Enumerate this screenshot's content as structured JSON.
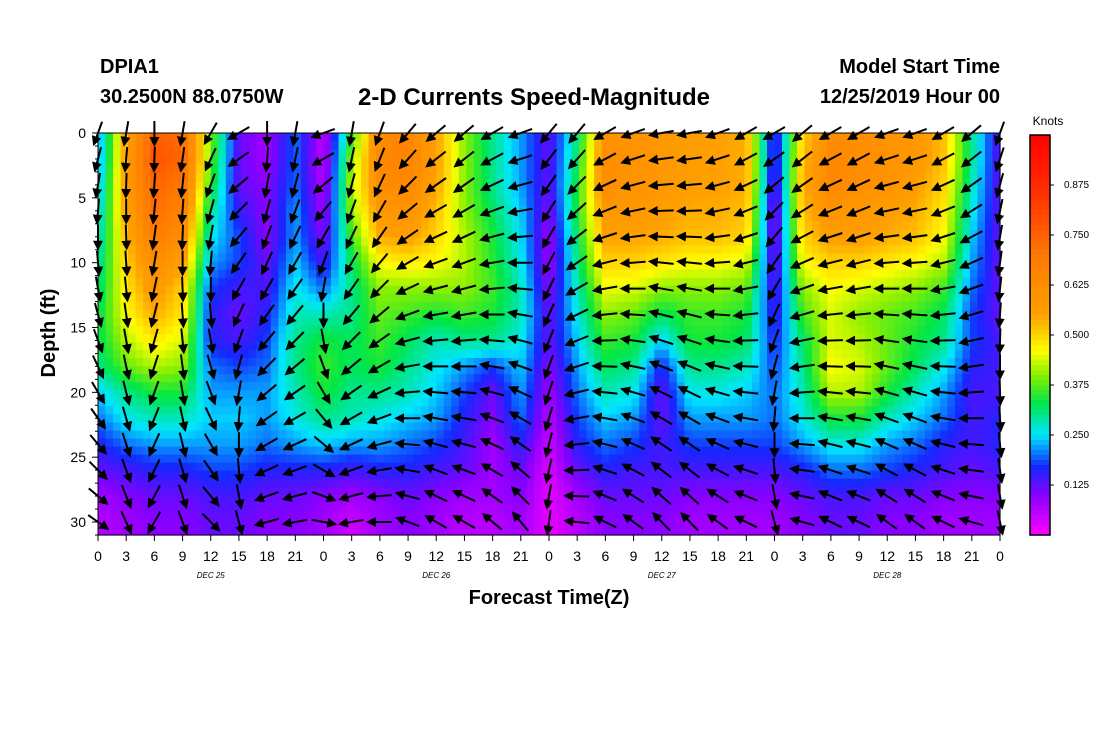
{
  "header": {
    "station_id": "DPIA1",
    "station_location": "30.2500N 88.0750W",
    "model_label": "Model Start Time",
    "model_time": "12/25/2019 Hour 00"
  },
  "chart_data": {
    "type": "heatmap",
    "title": "2-D Currents Speed-Magnitude",
    "xlabel": "Forecast Time(Z)",
    "ylabel": "Depth (ft)",
    "x_range_hours": [
      0,
      96
    ],
    "y_range_ft": [
      0,
      31
    ],
    "y_inverted": true,
    "x_tick_step_hours": 3,
    "x_tick_labels": [
      "0",
      "3",
      "6",
      "9",
      "12",
      "15",
      "18",
      "21",
      "0",
      "3",
      "6",
      "9",
      "12",
      "15",
      "18",
      "21",
      "0",
      "3",
      "6",
      "9",
      "12",
      "15",
      "18",
      "21",
      "0",
      "3",
      "6",
      "9",
      "12",
      "15",
      "18",
      "21",
      "0"
    ],
    "y_ticks": [
      0,
      5,
      10,
      15,
      20,
      25,
      30
    ],
    "y_tick_labels": [
      "0",
      "5",
      "10",
      "15",
      "20",
      "25",
      "30"
    ],
    "day_labels": [
      "DEC 25",
      "DEC 26",
      "DEC 27",
      "DEC 28"
    ],
    "colorbar": {
      "title": "Knots",
      "range": [
        0,
        1.0
      ],
      "ticks": [
        0.125,
        0.25,
        0.375,
        0.5,
        0.625,
        0.75,
        0.875
      ],
      "tick_labels": [
        "0.125",
        "0.250",
        "0.375",
        "0.500",
        "0.625",
        "0.750",
        "0.875"
      ]
    },
    "depths_ft": [
      0,
      2,
      4,
      6,
      8,
      10,
      12,
      14,
      16,
      18,
      20,
      22,
      24,
      26,
      28,
      30
    ],
    "hours": [
      0,
      3,
      6,
      9,
      12,
      15,
      18,
      21,
      24,
      27,
      30,
      33,
      36,
      39,
      42,
      45,
      48,
      51,
      54,
      57,
      60,
      63,
      66,
      69,
      72,
      75,
      78,
      81,
      84,
      87,
      90,
      93,
      96
    ],
    "speed_knots": [
      [
        0.2,
        0.55,
        0.75,
        0.72,
        0.4,
        0.12,
        0.08,
        0.2,
        0.05,
        0.35,
        0.62,
        0.65,
        0.55,
        0.4,
        0.3,
        0.22,
        0.12,
        0.3,
        0.6,
        0.6,
        0.58,
        0.56,
        0.55,
        0.54,
        0.12,
        0.5,
        0.62,
        0.62,
        0.6,
        0.58,
        0.52,
        0.3,
        0.12
      ],
      [
        0.2,
        0.56,
        0.78,
        0.74,
        0.38,
        0.12,
        0.08,
        0.2,
        0.05,
        0.4,
        0.64,
        0.66,
        0.56,
        0.4,
        0.3,
        0.22,
        0.12,
        0.32,
        0.62,
        0.6,
        0.58,
        0.56,
        0.55,
        0.54,
        0.12,
        0.52,
        0.64,
        0.62,
        0.6,
        0.58,
        0.52,
        0.3,
        0.12
      ],
      [
        0.22,
        0.56,
        0.74,
        0.7,
        0.35,
        0.12,
        0.1,
        0.2,
        0.06,
        0.42,
        0.62,
        0.64,
        0.55,
        0.4,
        0.3,
        0.22,
        0.12,
        0.34,
        0.62,
        0.6,
        0.58,
        0.56,
        0.55,
        0.54,
        0.1,
        0.54,
        0.64,
        0.62,
        0.6,
        0.56,
        0.5,
        0.28,
        0.12
      ],
      [
        0.24,
        0.55,
        0.72,
        0.66,
        0.3,
        0.15,
        0.1,
        0.22,
        0.08,
        0.4,
        0.58,
        0.6,
        0.52,
        0.4,
        0.32,
        0.24,
        0.1,
        0.34,
        0.58,
        0.58,
        0.56,
        0.54,
        0.54,
        0.52,
        0.08,
        0.52,
        0.6,
        0.58,
        0.56,
        0.54,
        0.48,
        0.26,
        0.12
      ],
      [
        0.26,
        0.52,
        0.68,
        0.62,
        0.26,
        0.18,
        0.1,
        0.22,
        0.1,
        0.36,
        0.54,
        0.56,
        0.5,
        0.42,
        0.34,
        0.25,
        0.08,
        0.32,
        0.55,
        0.55,
        0.54,
        0.52,
        0.52,
        0.5,
        0.08,
        0.5,
        0.56,
        0.56,
        0.54,
        0.52,
        0.46,
        0.24,
        0.12
      ],
      [
        0.28,
        0.5,
        0.62,
        0.56,
        0.22,
        0.18,
        0.12,
        0.24,
        0.14,
        0.32,
        0.46,
        0.48,
        0.46,
        0.42,
        0.35,
        0.26,
        0.08,
        0.3,
        0.5,
        0.5,
        0.48,
        0.46,
        0.46,
        0.44,
        0.1,
        0.46,
        0.5,
        0.5,
        0.48,
        0.46,
        0.42,
        0.22,
        0.12
      ],
      [
        0.3,
        0.48,
        0.58,
        0.5,
        0.18,
        0.14,
        0.14,
        0.26,
        0.2,
        0.3,
        0.4,
        0.4,
        0.4,
        0.4,
        0.36,
        0.28,
        0.1,
        0.28,
        0.45,
        0.44,
        0.4,
        0.4,
        0.4,
        0.38,
        0.12,
        0.4,
        0.46,
        0.44,
        0.42,
        0.4,
        0.36,
        0.2,
        0.12
      ],
      [
        0.32,
        0.46,
        0.54,
        0.48,
        0.16,
        0.12,
        0.16,
        0.28,
        0.28,
        0.3,
        0.38,
        0.36,
        0.34,
        0.36,
        0.34,
        0.28,
        0.12,
        0.26,
        0.4,
        0.38,
        0.32,
        0.36,
        0.36,
        0.34,
        0.14,
        0.36,
        0.44,
        0.4,
        0.38,
        0.36,
        0.32,
        0.18,
        0.12
      ],
      [
        0.32,
        0.42,
        0.48,
        0.44,
        0.16,
        0.14,
        0.18,
        0.3,
        0.34,
        0.32,
        0.36,
        0.32,
        0.28,
        0.3,
        0.3,
        0.26,
        0.12,
        0.24,
        0.36,
        0.34,
        0.24,
        0.34,
        0.34,
        0.32,
        0.16,
        0.32,
        0.44,
        0.42,
        0.38,
        0.34,
        0.3,
        0.18,
        0.14
      ],
      [
        0.3,
        0.38,
        0.42,
        0.4,
        0.2,
        0.18,
        0.2,
        0.3,
        0.36,
        0.32,
        0.34,
        0.3,
        0.26,
        0.22,
        0.18,
        0.24,
        0.1,
        0.22,
        0.32,
        0.3,
        0.16,
        0.3,
        0.3,
        0.28,
        0.18,
        0.3,
        0.46,
        0.44,
        0.38,
        0.32,
        0.26,
        0.16,
        0.14
      ],
      [
        0.24,
        0.3,
        0.34,
        0.34,
        0.22,
        0.22,
        0.22,
        0.28,
        0.34,
        0.3,
        0.3,
        0.28,
        0.24,
        0.18,
        0.12,
        0.22,
        0.08,
        0.2,
        0.28,
        0.26,
        0.12,
        0.26,
        0.26,
        0.24,
        0.2,
        0.28,
        0.42,
        0.42,
        0.34,
        0.28,
        0.22,
        0.14,
        0.14
      ],
      [
        0.2,
        0.26,
        0.28,
        0.28,
        0.24,
        0.24,
        0.22,
        0.26,
        0.3,
        0.28,
        0.26,
        0.24,
        0.22,
        0.16,
        0.1,
        0.2,
        0.06,
        0.18,
        0.24,
        0.22,
        0.12,
        0.22,
        0.22,
        0.22,
        0.2,
        0.26,
        0.34,
        0.34,
        0.28,
        0.24,
        0.2,
        0.14,
        0.16
      ],
      [
        0.16,
        0.2,
        0.22,
        0.22,
        0.22,
        0.22,
        0.2,
        0.22,
        0.24,
        0.22,
        0.22,
        0.2,
        0.18,
        0.14,
        0.08,
        0.16,
        0.04,
        0.16,
        0.2,
        0.18,
        0.14,
        0.18,
        0.18,
        0.18,
        0.18,
        0.22,
        0.26,
        0.26,
        0.22,
        0.2,
        0.16,
        0.14,
        0.16
      ],
      [
        0.12,
        0.14,
        0.16,
        0.16,
        0.18,
        0.18,
        0.16,
        0.16,
        0.16,
        0.14,
        0.16,
        0.16,
        0.14,
        0.12,
        0.08,
        0.12,
        0.03,
        0.12,
        0.16,
        0.14,
        0.14,
        0.14,
        0.14,
        0.14,
        0.14,
        0.16,
        0.2,
        0.2,
        0.18,
        0.16,
        0.14,
        0.12,
        0.14
      ],
      [
        0.08,
        0.1,
        0.12,
        0.12,
        0.14,
        0.14,
        0.12,
        0.12,
        0.1,
        0.08,
        0.1,
        0.12,
        0.1,
        0.08,
        0.08,
        0.1,
        0.02,
        0.08,
        0.12,
        0.12,
        0.12,
        0.1,
        0.1,
        0.1,
        0.1,
        0.12,
        0.14,
        0.14,
        0.12,
        0.12,
        0.1,
        0.1,
        0.1
      ],
      [
        0.06,
        0.08,
        0.1,
        0.1,
        0.12,
        0.12,
        0.1,
        0.1,
        0.08,
        0.04,
        0.08,
        0.1,
        0.08,
        0.06,
        0.06,
        0.08,
        0.02,
        0.06,
        0.1,
        0.1,
        0.1,
        0.08,
        0.08,
        0.08,
        0.08,
        0.1,
        0.12,
        0.12,
        0.1,
        0.1,
        0.08,
        0.08,
        0.08
      ]
    ],
    "direction_deg": [
      [
        200,
        190,
        180,
        190,
        210,
        240,
        180,
        190,
        250,
        190,
        200,
        220,
        230,
        230,
        240,
        250,
        220,
        220,
        240,
        250,
        260,
        260,
        250,
        240,
        240,
        230,
        240,
        240,
        250,
        250,
        240,
        230,
        200
      ],
      [
        195,
        185,
        182,
        188,
        205,
        235,
        185,
        192,
        240,
        192,
        202,
        222,
        232,
        232,
        242,
        252,
        218,
        222,
        242,
        252,
        262,
        262,
        252,
        242,
        235,
        232,
        242,
        242,
        252,
        252,
        242,
        232,
        198
      ],
      [
        190,
        182,
        184,
        186,
        200,
        230,
        190,
        195,
        230,
        195,
        205,
        225,
        235,
        235,
        245,
        255,
        215,
        225,
        245,
        255,
        265,
        265,
        255,
        245,
        230,
        235,
        245,
        245,
        255,
        255,
        245,
        235,
        195
      ],
      [
        185,
        180,
        186,
        184,
        195,
        225,
        195,
        200,
        220,
        200,
        210,
        230,
        240,
        240,
        250,
        260,
        212,
        228,
        248,
        258,
        268,
        268,
        258,
        248,
        225,
        238,
        248,
        248,
        258,
        258,
        248,
        238,
        192
      ],
      [
        180,
        178,
        188,
        182,
        190,
        220,
        200,
        205,
        210,
        205,
        215,
        235,
        245,
        245,
        255,
        265,
        210,
        232,
        252,
        262,
        272,
        272,
        262,
        252,
        220,
        242,
        252,
        252,
        262,
        262,
        252,
        242,
        190
      ],
      [
        175,
        176,
        190,
        180,
        185,
        215,
        205,
        210,
        200,
        210,
        220,
        240,
        250,
        250,
        260,
        270,
        208,
        236,
        256,
        266,
        276,
        276,
        266,
        256,
        215,
        246,
        256,
        256,
        266,
        266,
        256,
        246,
        188
      ],
      [
        170,
        174,
        192,
        178,
        180,
        210,
        210,
        215,
        190,
        215,
        225,
        245,
        255,
        255,
        265,
        275,
        206,
        240,
        260,
        270,
        280,
        280,
        270,
        260,
        210,
        250,
        260,
        260,
        270,
        270,
        260,
        250,
        186
      ],
      [
        165,
        172,
        194,
        176,
        175,
        205,
        215,
        220,
        180,
        220,
        230,
        250,
        260,
        260,
        270,
        280,
        204,
        244,
        264,
        274,
        284,
        284,
        274,
        264,
        205,
        254,
        264,
        264,
        274,
        274,
        264,
        254,
        184
      ],
      [
        160,
        170,
        196,
        174,
        170,
        200,
        220,
        225,
        170,
        225,
        235,
        255,
        265,
        265,
        275,
        285,
        202,
        248,
        268,
        278,
        288,
        288,
        278,
        268,
        200,
        258,
        268,
        268,
        278,
        278,
        268,
        258,
        182
      ],
      [
        155,
        168,
        198,
        172,
        165,
        195,
        225,
        230,
        160,
        230,
        240,
        260,
        270,
        270,
        280,
        290,
        200,
        252,
        272,
        282,
        292,
        292,
        282,
        272,
        195,
        262,
        272,
        272,
        282,
        282,
        272,
        262,
        180
      ],
      [
        150,
        166,
        200,
        170,
        160,
        190,
        230,
        235,
        150,
        235,
        245,
        265,
        275,
        275,
        285,
        295,
        198,
        256,
        276,
        286,
        296,
        296,
        286,
        276,
        190,
        266,
        276,
        276,
        286,
        286,
        276,
        266,
        178
      ],
      [
        145,
        164,
        202,
        168,
        155,
        185,
        235,
        240,
        140,
        240,
        250,
        270,
        280,
        280,
        290,
        300,
        196,
        260,
        280,
        290,
        300,
        300,
        290,
        280,
        185,
        270,
        280,
        280,
        290,
        290,
        280,
        270,
        176
      ],
      [
        140,
        162,
        204,
        166,
        150,
        180,
        240,
        245,
        130,
        245,
        255,
        275,
        285,
        285,
        295,
        305,
        194,
        264,
        284,
        294,
        304,
        304,
        294,
        284,
        180,
        274,
        284,
        284,
        294,
        294,
        284,
        274,
        174
      ],
      [
        135,
        160,
        206,
        164,
        145,
        175,
        245,
        250,
        120,
        250,
        260,
        280,
        290,
        290,
        300,
        310,
        192,
        268,
        288,
        298,
        308,
        308,
        298,
        288,
        175,
        278,
        288,
        288,
        298,
        298,
        288,
        278,
        172
      ],
      [
        130,
        158,
        208,
        162,
        140,
        170,
        250,
        255,
        110,
        255,
        265,
        285,
        295,
        295,
        305,
        315,
        190,
        272,
        292,
        302,
        312,
        312,
        302,
        292,
        170,
        282,
        292,
        292,
        302,
        302,
        292,
        282,
        170
      ],
      [
        125,
        156,
        210,
        160,
        135,
        165,
        255,
        260,
        100,
        260,
        270,
        290,
        300,
        300,
        310,
        320,
        188,
        276,
        296,
        306,
        316,
        316,
        306,
        296,
        165,
        286,
        296,
        296,
        306,
        306,
        296,
        286,
        168
      ]
    ]
  }
}
